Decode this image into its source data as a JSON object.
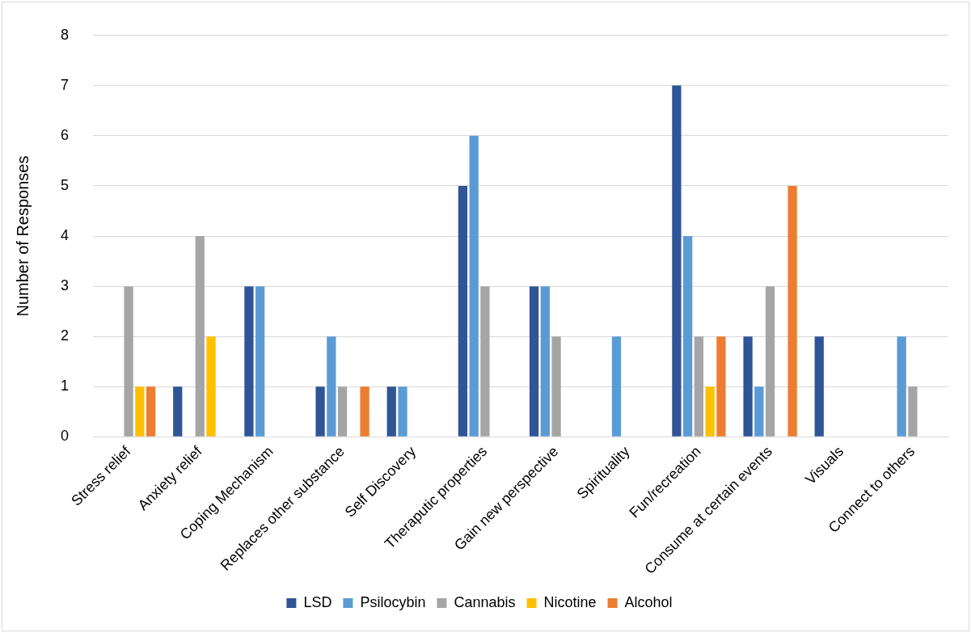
{
  "chart_data": {
    "type": "bar",
    "ylabel": "Number of Responses",
    "categories": [
      "Stress relief",
      "Anxiety relief",
      "Coping Mechanism",
      "Replaces other substance",
      "Self Discovery",
      "Theraputic properties",
      "Gain new perspective",
      "Spirituality",
      "Fun/recreation",
      "Consume at certain events",
      "Visuals",
      "Connect to others"
    ],
    "series": [
      {
        "name": "LSD",
        "color": "#2f5597",
        "values": [
          0,
          1,
          3,
          1,
          1,
          5,
          3,
          0,
          7,
          2,
          2,
          0
        ]
      },
      {
        "name": "Psilocybin",
        "color": "#5b9bd5",
        "values": [
          0,
          0,
          3,
          2,
          1,
          6,
          3,
          2,
          4,
          1,
          0,
          2
        ]
      },
      {
        "name": "Cannabis",
        "color": "#a5a5a5",
        "values": [
          3,
          4,
          0,
          1,
          0,
          3,
          2,
          0,
          2,
          3,
          0,
          1
        ]
      },
      {
        "name": "Nicotine",
        "color": "#ffc000",
        "values": [
          1,
          2,
          0,
          0,
          0,
          0,
          0,
          0,
          1,
          0,
          0,
          0
        ]
      },
      {
        "name": "Alcohol",
        "color": "#ed7d31",
        "values": [
          1,
          0,
          0,
          1,
          0,
          0,
          0,
          0,
          2,
          5,
          0,
          0
        ]
      }
    ],
    "ylim": [
      0,
      8
    ],
    "yticks": [
      0,
      1,
      2,
      3,
      4,
      5,
      6,
      7,
      8
    ],
    "grid": "y",
    "legend": "bottom"
  }
}
